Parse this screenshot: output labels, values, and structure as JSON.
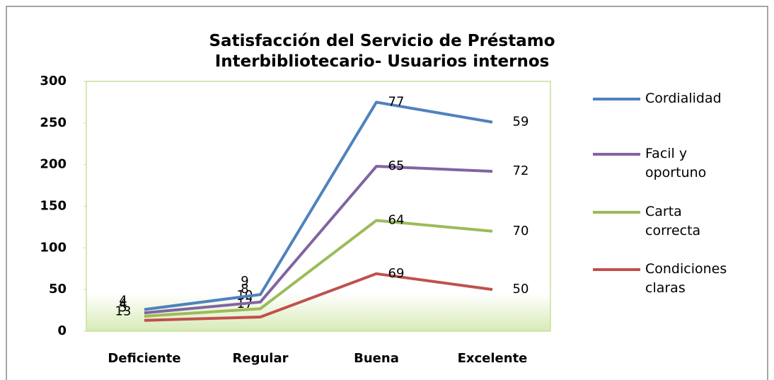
{
  "chart_data": {
    "type": "line",
    "stacked": true,
    "title": "Satisfacción del Servicio de Préstamo Interbibliotecario- Usuarios internos",
    "categories": [
      "Deficiente",
      "Regular",
      "Buena",
      "Excelente"
    ],
    "series": [
      {
        "name": "Cordialidad",
        "color": "#4f81bd",
        "values": [
          4,
          9,
          77,
          59
        ]
      },
      {
        "name": "Facil y oportuno",
        "color": "#8064a2",
        "values": [
          4,
          8,
          65,
          72
        ]
      },
      {
        "name": "Carta correcta",
        "color": "#9bbb59",
        "values": [
          5,
          10,
          64,
          70
        ]
      },
      {
        "name": "Condiciones claras",
        "color": "#c0504d",
        "values": [
          13,
          17,
          69,
          50
        ]
      }
    ],
    "ylim": [
      0,
      300
    ],
    "yticks": [
      0,
      50,
      100,
      150,
      200,
      250,
      300
    ],
    "grid": false,
    "legend": "right"
  }
}
